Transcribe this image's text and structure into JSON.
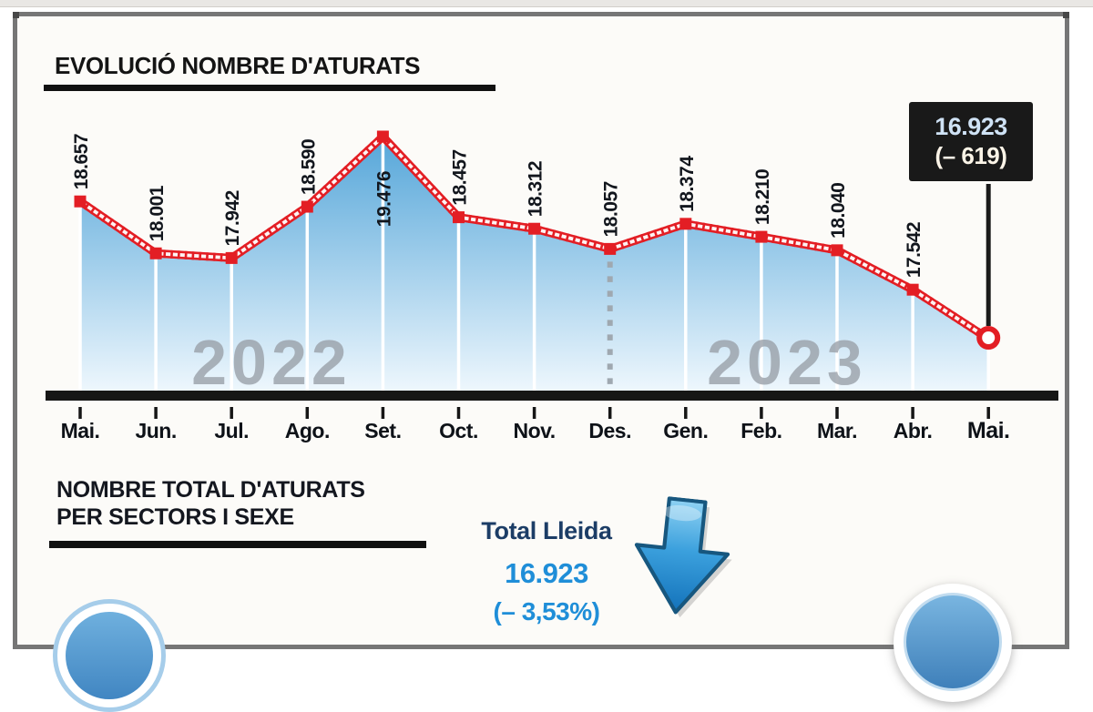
{
  "chart_data": {
    "type": "area",
    "title": "EVOLUCIÓ NOMBRE D'ATURATS",
    "categories": [
      "Mai.",
      "Jun.",
      "Jul.",
      "Ago.",
      "Set.",
      "Oct.",
      "Nov.",
      "Des.",
      "Gen.",
      "Feb.",
      "Mar.",
      "Abr.",
      "Mai."
    ],
    "values": [
      18657,
      18001,
      17942,
      18590,
      19476,
      18457,
      18312,
      18057,
      18374,
      18210,
      18040,
      17542,
      16923
    ],
    "point_labels": [
      "18.657",
      "18.001",
      "17.942",
      "18.590",
      "19.476",
      "18.457",
      "18.312",
      "18.057",
      "18.374",
      "18.210",
      "18.040",
      "17.542",
      "16.923"
    ],
    "year_watermarks": [
      "2022",
      "2023"
    ],
    "year_divider_after_category": "Des.",
    "callout": {
      "line1": "16.923",
      "line2": "(– 619)"
    },
    "xlabel": "",
    "ylabel": "",
    "ylim": [
      16600,
      19600
    ],
    "grid": false,
    "legend": "none",
    "styles": {
      "line_color": "#e31e24",
      "fill_top": "#55a6d9",
      "fill_bottom": "#eef7fd",
      "watermark_color": "#9aa1a9",
      "axis_color": "#161616",
      "label_color": "#12161d",
      "month_color": "#0e1218",
      "divider_color": "#9fa8b0",
      "callout_bg": "#191919"
    }
  },
  "section2": {
    "title_line1": "NOMBRE TOTAL D'ATURATS",
    "title_line2": "PER SECTORS I SEXE",
    "total_label": "Total Lleida",
    "total_value": "16.923",
    "total_delta": "(– 3,53%)",
    "arrow_direction": "down",
    "colors": {
      "value_blue": "#1f8ed8",
      "label_navy": "#1c3d66",
      "arrow_fill": "#1372ba"
    }
  }
}
